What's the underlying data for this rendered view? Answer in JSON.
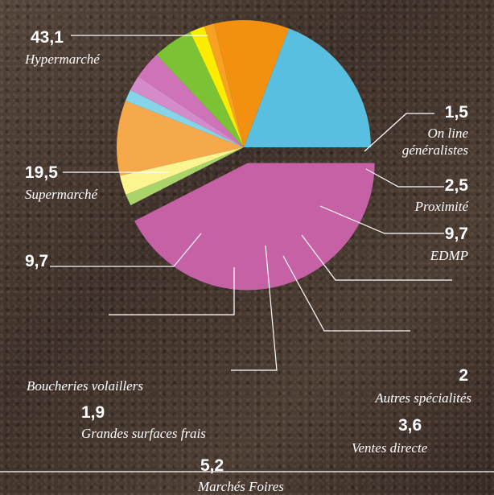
{
  "chart_data": {
    "type": "pie",
    "unit": "%",
    "slices": [
      {
        "label": "Hypermarché",
        "value_text": "43,1",
        "value": 43.1,
        "color": "#c561a4"
      },
      {
        "label": "On line généralistes",
        "value_text": "1,5",
        "value": 1.5,
        "color": "#a9d46a"
      },
      {
        "label": "Proximité",
        "value_text": "2,5",
        "value": 2.5,
        "color": "#fbf48f"
      },
      {
        "label": "EDMP",
        "value_text": "9,7",
        "value": 9.7,
        "color": "#f5a94b"
      },
      {
        "label": "",
        "value_text": "",
        "value": 1.5,
        "color": "#85d4e8"
      },
      {
        "label": "Autres spécialités",
        "value_text": "2",
        "value": 2.0,
        "color": "#d58bc9"
      },
      {
        "label": "Ventes directe",
        "value_text": "3,6",
        "value": 3.6,
        "color": "#cf73b8"
      },
      {
        "label": "Marchés Foires",
        "value_text": "5,2",
        "value": 5.2,
        "color": "#7cc235"
      },
      {
        "label": "Grandes surfaces frais",
        "value_text": "1,9",
        "value": 1.9,
        "color": "#fbec00"
      },
      {
        "label": "Boucheries volaillers",
        "value_text": "",
        "value": 1.3,
        "color": "#f7a223"
      },
      {
        "label": "",
        "value_text": "9,7",
        "value": 9.7,
        "color": "#f29010"
      },
      {
        "label": "Supermarché",
        "value_text": "19,5",
        "value": 19.5,
        "color": "#58bfe0"
      }
    ]
  }
}
